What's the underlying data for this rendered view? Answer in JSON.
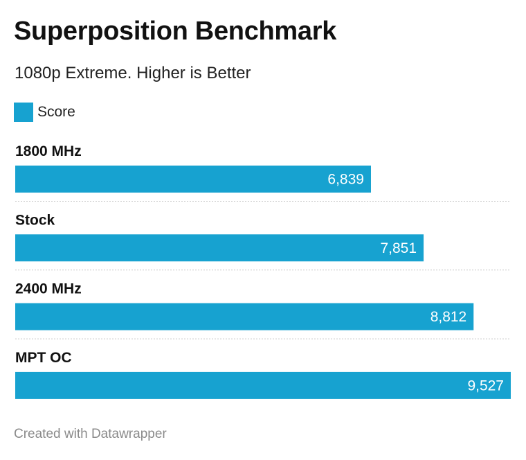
{
  "colors": {
    "bar": "#17a2d0",
    "divider": "#c8c8c8"
  },
  "legend": {
    "icon": "square-swatch",
    "label": "Score"
  },
  "footer": {
    "credit": "Created with Datawrapper"
  },
  "chart_data": {
    "type": "bar",
    "orientation": "horizontal",
    "title": "Superposition Benchmark",
    "subtitle": "1080p Extreme. Higher is Better",
    "categories": [
      "1800 MHz",
      "Stock",
      "2400 MHz",
      "MPT OC"
    ],
    "series": [
      {
        "name": "Score",
        "values": [
          6839,
          7851,
          8812,
          9527
        ],
        "value_labels": [
          "6,839",
          "7,851",
          "8,812",
          "9,527"
        ]
      }
    ],
    "xlim": [
      0,
      9527
    ],
    "xlabel": "",
    "ylabel": "",
    "grid": false,
    "legend_position": "top-left"
  }
}
